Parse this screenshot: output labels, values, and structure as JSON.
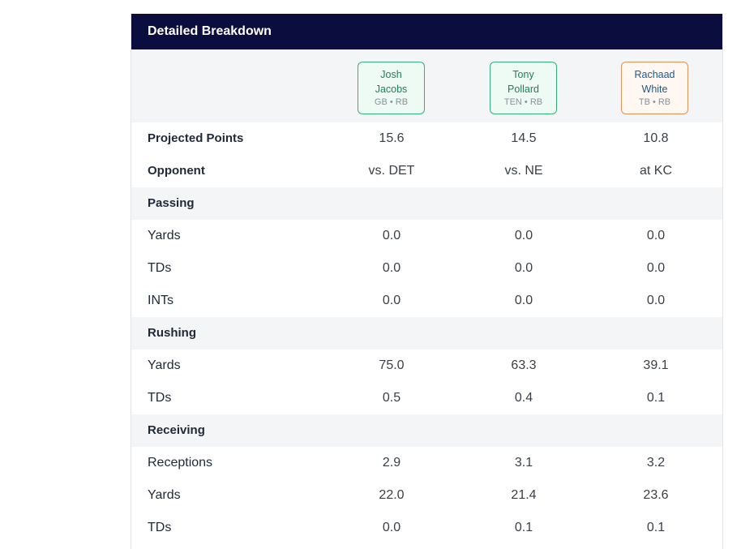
{
  "title": "Detailed Breakdown",
  "players": [
    {
      "first": "Josh",
      "last": "Jacobs",
      "team_pos": "GB • RB"
    },
    {
      "first": "Tony",
      "last": "Pollard",
      "team_pos": "TEN • RB"
    },
    {
      "first": "Rachaad",
      "last": "White",
      "team_pos": "TB • RB"
    }
  ],
  "rows": [
    {
      "label": "Projected Points",
      "values": [
        "15.6",
        "14.5",
        "10.8"
      ]
    },
    {
      "label": "Opponent",
      "values": [
        "vs. DET",
        "vs. NE",
        "at KC"
      ]
    },
    {
      "label": "Passing"
    },
    {
      "label": "Yards",
      "values": [
        "0.0",
        "0.0",
        "0.0"
      ]
    },
    {
      "label": "TDs",
      "values": [
        "0.0",
        "0.0",
        "0.0"
      ]
    },
    {
      "label": "INTs",
      "values": [
        "0.0",
        "0.0",
        "0.0"
      ]
    },
    {
      "label": "Rushing"
    },
    {
      "label": "Yards",
      "values": [
        "75.0",
        "63.3",
        "39.1"
      ]
    },
    {
      "label": "TDs",
      "values": [
        "0.5",
        "0.4",
        "0.1"
      ]
    },
    {
      "label": "Receiving"
    },
    {
      "label": "Receptions",
      "values": [
        "2.9",
        "3.1",
        "3.2"
      ]
    },
    {
      "label": "Yards",
      "values": [
        "22.0",
        "21.4",
        "23.6"
      ]
    },
    {
      "label": "TDs",
      "values": [
        "0.0",
        "0.1",
        "0.1"
      ]
    }
  ]
}
